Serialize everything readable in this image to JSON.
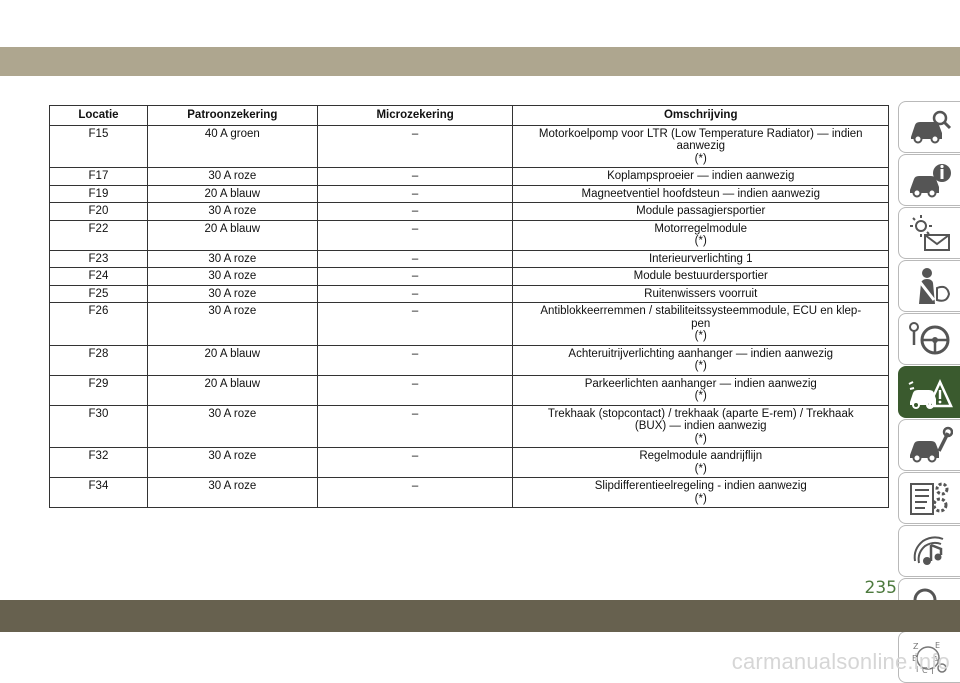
{
  "table": {
    "headers": [
      "Locatie",
      "Patroonzekering",
      "Microzekering",
      "Omschrijving"
    ],
    "rows": [
      {
        "loc": "F15",
        "cart": "40 A groen",
        "micro": "–",
        "desc": [
          "Motorkoelpomp voor LTR (Low Temperature Radiator) — indien",
          "aanwezig",
          "(*)"
        ]
      },
      {
        "loc": "F17",
        "cart": "30 A roze",
        "micro": "–",
        "desc": [
          "Koplampsproeier — indien aanwezig"
        ]
      },
      {
        "loc": "F19",
        "cart": "20 A blauw",
        "micro": "–",
        "desc": [
          "Magneetventiel hoofdsteun — indien aanwezig"
        ]
      },
      {
        "loc": "F20",
        "cart": "30 A roze",
        "micro": "–",
        "desc": [
          "Module passagiersportier"
        ]
      },
      {
        "loc": "F22",
        "cart": "20 A blauw",
        "micro": "–",
        "desc": [
          "Motorregelmodule",
          "(*)"
        ]
      },
      {
        "loc": "F23",
        "cart": "30 A roze",
        "micro": "–",
        "desc": [
          "Interieurverlichting 1"
        ]
      },
      {
        "loc": "F24",
        "cart": "30 A roze",
        "micro": "–",
        "desc": [
          "Module bestuurdersportier"
        ]
      },
      {
        "loc": "F25",
        "cart": "30 A roze",
        "micro": "–",
        "desc": [
          "Ruitenwissers voorruit"
        ]
      },
      {
        "loc": "F26",
        "cart": "30 A roze",
        "micro": "–",
        "desc": [
          "Antiblokkeerremmen / stabiliteitssysteemmodule, ECU en klep-",
          "pen",
          "(*)"
        ]
      },
      {
        "loc": "F28",
        "cart": "20 A blauw",
        "micro": "–",
        "desc": [
          "Achteruitrijverlichting aanhanger — indien aanwezig",
          "(*)"
        ]
      },
      {
        "loc": "F29",
        "cart": "20 A blauw",
        "micro": "–",
        "desc": [
          "Parkeerlichten aanhanger — indien aanwezig",
          "(*)"
        ]
      },
      {
        "loc": "F30",
        "cart": "30 A roze",
        "micro": "–",
        "desc": [
          "Trekhaak (stopcontact) / trekhaak (aparte E-rem) / Trekhaak",
          "(BUX) — indien aanwezig",
          "(*)"
        ]
      },
      {
        "loc": "F32",
        "cart": "30 A roze",
        "micro": "–",
        "desc": [
          "Regelmodule aandrijflijn",
          "(*)"
        ]
      },
      {
        "loc": "F34",
        "cart": "30 A roze",
        "micro": "–",
        "desc": [
          "Slipdifferentieelregeling - indien aanwezig",
          "(*)"
        ]
      }
    ]
  },
  "side_tabs": [
    {
      "icon": "car-magnifier-icon",
      "active": false
    },
    {
      "icon": "car-info-icon",
      "active": false
    },
    {
      "icon": "warning-lights-message-icon",
      "active": false
    },
    {
      "icon": "seatbelt-airbag-icon",
      "active": false
    },
    {
      "icon": "steering-wheel-key-icon",
      "active": false
    },
    {
      "icon": "car-breakdown-warning-icon",
      "active": true
    },
    {
      "icon": "car-wrench-icon",
      "active": false
    },
    {
      "icon": "spec-list-gear-icon",
      "active": false
    },
    {
      "icon": "multimedia-note-icon",
      "active": false
    },
    {
      "icon": "search-magnifier-icon",
      "active": false
    },
    {
      "icon": "alphabetical-index-icon",
      "active": false
    }
  ],
  "page_number": "235",
  "watermark": "carmanualsonline.info",
  "colors": {
    "top_band": "#aea68f",
    "bottom_band": "#67614f",
    "active_tab": "#3a5a2e",
    "page_number": "#4d7a3e"
  }
}
